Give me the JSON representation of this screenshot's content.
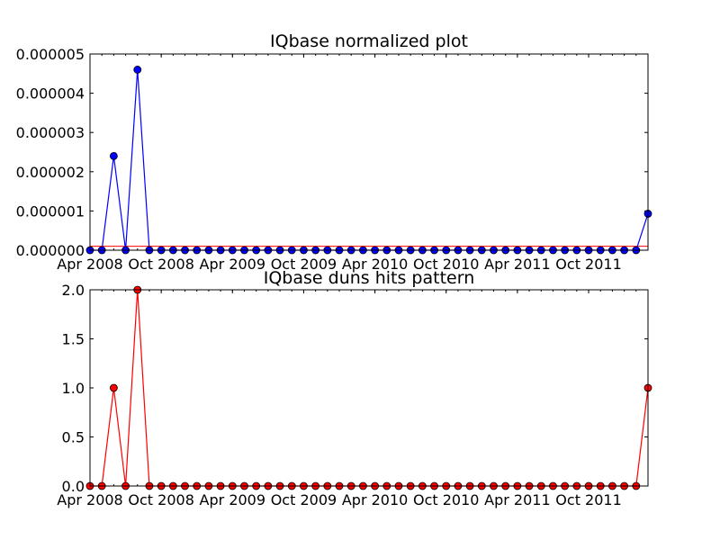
{
  "chart_data": [
    {
      "type": "line",
      "title": "IQbase normalized plot",
      "xlabel": "",
      "ylabel": "",
      "x": [
        "2008-04",
        "2008-05",
        "2008-06",
        "2008-07",
        "2008-08",
        "2008-09",
        "2008-10",
        "2008-11",
        "2008-12",
        "2009-01",
        "2009-02",
        "2009-03",
        "2009-04",
        "2009-05",
        "2009-06",
        "2009-07",
        "2009-08",
        "2009-09",
        "2009-10",
        "2009-11",
        "2009-12",
        "2010-01",
        "2010-02",
        "2010-03",
        "2010-04",
        "2010-05",
        "2010-06",
        "2010-07",
        "2010-08",
        "2010-09",
        "2010-10",
        "2010-11",
        "2010-12",
        "2011-01",
        "2011-02",
        "2011-03",
        "2011-04",
        "2011-05",
        "2011-06",
        "2011-07",
        "2011-08",
        "2011-09",
        "2011-10",
        "2011-11",
        "2011-12",
        "2012-01",
        "2012-02",
        "2012-03"
      ],
      "xlim": [
        "2008-04",
        "2012-03"
      ],
      "ylim": [
        0,
        5e-06
      ],
      "xticks": [
        "Apr 2008",
        "Oct 2008",
        "Apr 2009",
        "Oct 2009",
        "Apr 2010",
        "Oct 2010",
        "Apr 2011",
        "Oct 2011"
      ],
      "yticks": [
        "0.000000",
        "0.000001",
        "0.000002",
        "0.000003",
        "0.000004",
        "0.000005"
      ],
      "grid": false,
      "legend": "none",
      "series": [
        {
          "color": "#0000ff",
          "values": [
            0,
            0,
            2.4e-06,
            0,
            4.6e-06,
            0,
            0,
            0,
            0,
            0,
            0,
            0,
            0,
            0,
            0,
            0,
            0,
            0,
            0,
            0,
            0,
            0,
            0,
            0,
            0,
            0,
            0,
            0,
            0,
            0,
            0,
            0,
            0,
            0,
            0,
            0,
            0,
            0,
            0,
            0,
            0,
            0,
            0,
            0,
            0,
            0,
            0,
            9.3e-07
          ]
        }
      ],
      "reference_line": {
        "color": "#ff0000",
        "y": 1e-07
      }
    },
    {
      "type": "line",
      "title": "IQbase duns hits pattern",
      "xlabel": "",
      "ylabel": "",
      "x": [
        "2008-04",
        "2008-05",
        "2008-06",
        "2008-07",
        "2008-08",
        "2008-09",
        "2008-10",
        "2008-11",
        "2008-12",
        "2009-01",
        "2009-02",
        "2009-03",
        "2009-04",
        "2009-05",
        "2009-06",
        "2009-07",
        "2009-08",
        "2009-09",
        "2009-10",
        "2009-11",
        "2009-12",
        "2010-01",
        "2010-02",
        "2010-03",
        "2010-04",
        "2010-05",
        "2010-06",
        "2010-07",
        "2010-08",
        "2010-09",
        "2010-10",
        "2010-11",
        "2010-12",
        "2011-01",
        "2011-02",
        "2011-03",
        "2011-04",
        "2011-05",
        "2011-06",
        "2011-07",
        "2011-08",
        "2011-09",
        "2011-10",
        "2011-11",
        "2011-12",
        "2012-01",
        "2012-02",
        "2012-03"
      ],
      "xlim": [
        "2008-04",
        "2012-03"
      ],
      "ylim": [
        0,
        2
      ],
      "xticks": [
        "Apr 2008",
        "Oct 2008",
        "Apr 2009",
        "Oct 2009",
        "Apr 2010",
        "Oct 2010",
        "Apr 2011",
        "Oct 2011"
      ],
      "yticks": [
        "0.0",
        "0.5",
        "1.0",
        "1.5",
        "2.0"
      ],
      "grid": false,
      "legend": "none",
      "series": [
        {
          "color": "#ff0000",
          "values": [
            0,
            0,
            1,
            0,
            2,
            0,
            0,
            0,
            0,
            0,
            0,
            0,
            0,
            0,
            0,
            0,
            0,
            0,
            0,
            0,
            0,
            0,
            0,
            0,
            0,
            0,
            0,
            0,
            0,
            0,
            0,
            0,
            0,
            0,
            0,
            0,
            0,
            0,
            0,
            0,
            0,
            0,
            0,
            0,
            0,
            0,
            0,
            1
          ]
        }
      ]
    }
  ]
}
